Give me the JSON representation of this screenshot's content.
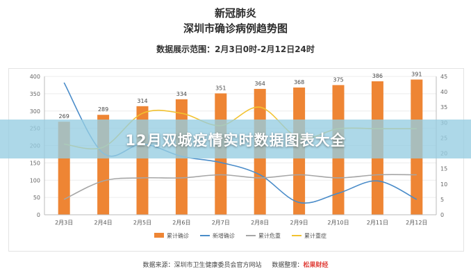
{
  "header": {
    "title_line1": "新冠肺炎",
    "title_line2": "深圳市确诊病例趋势图",
    "range": "数据展示范围：2月3日0时-2月12日24时"
  },
  "banner": {
    "text": "12月双城疫情实时数据图表大全"
  },
  "footer": {
    "source": "数据来源：深圳市卫生健康委员会官方网站",
    "organizer_label": "数据整理：",
    "logo_text": "松果财经"
  },
  "colors": {
    "bar": "#ee8534",
    "new_cases": "#4a8cc9",
    "critical": "#a6a6a6",
    "severe": "#f2c230"
  },
  "chart_data": {
    "type": "bar",
    "categories": [
      "2月3日",
      "2月4日",
      "2月5日",
      "2月6日",
      "2月7日",
      "2月8日",
      "2月9日",
      "2月10日",
      "2月11日",
      "2月12日"
    ],
    "series": [
      {
        "name": "累计确诊",
        "type": "bar",
        "axis": "left",
        "values": [
          269,
          289,
          314,
          334,
          351,
          364,
          368,
          375,
          386,
          391
        ]
      },
      {
        "name": "新增确诊",
        "type": "line",
        "axis": "right",
        "values": [
          43,
          20,
          23,
          19,
          17,
          13,
          4,
          7,
          11,
          5
        ]
      },
      {
        "name": "累计危重",
        "type": "line",
        "axis": "right",
        "values": [
          5,
          11,
          12,
          12,
          13,
          12,
          13,
          12,
          13,
          13
        ]
      },
      {
        "name": "累计重症",
        "type": "line",
        "axis": "right",
        "values": [
          23,
          22,
          33,
          33,
          29,
          35,
          25,
          28,
          28,
          28
        ]
      }
    ],
    "y_left": {
      "min": 0,
      "max": 400,
      "ticks": [
        "0",
        "50",
        "100",
        "150",
        "200",
        "250",
        "300",
        "350",
        "400"
      ]
    },
    "y_right": {
      "min": 0,
      "max": 45,
      "ticks": [
        "0",
        "5",
        "10",
        "15",
        "20",
        "25",
        "30",
        "35",
        "40",
        "45"
      ]
    },
    "legend_position": "bottom",
    "grid": true
  }
}
